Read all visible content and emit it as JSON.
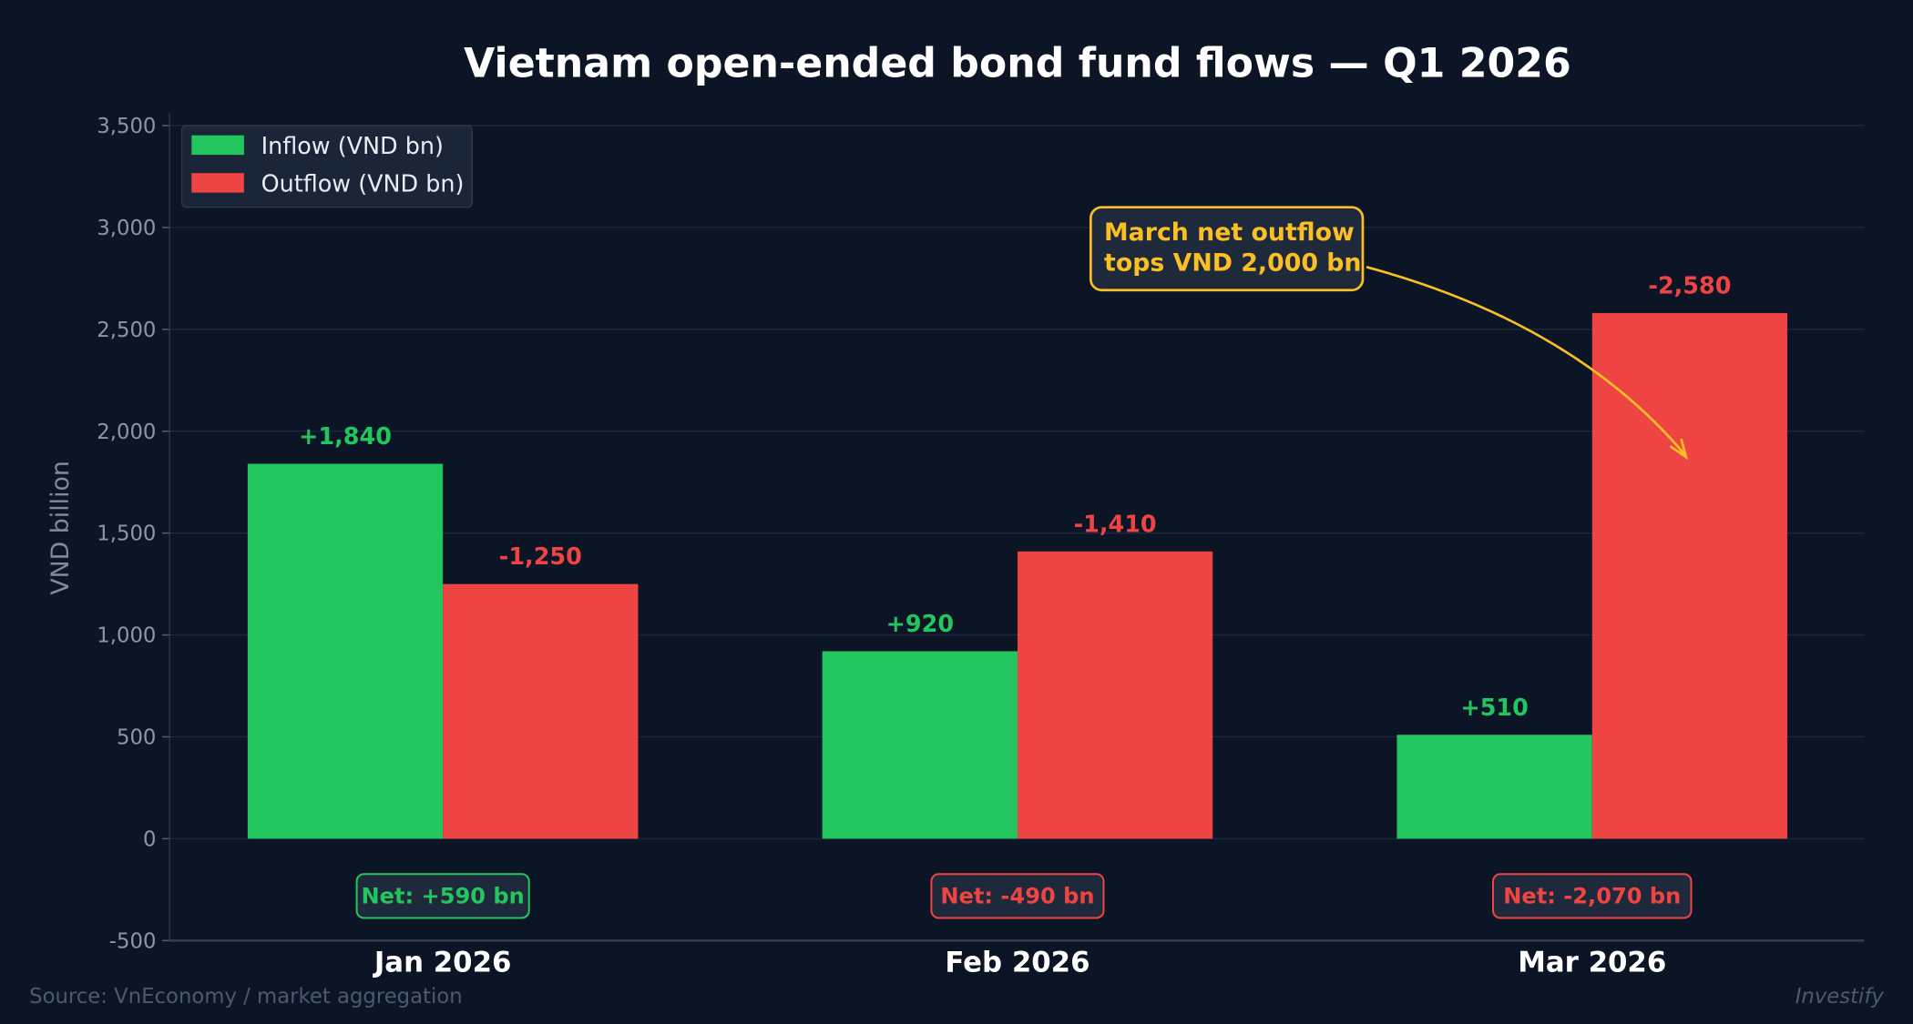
{
  "chart_data": {
    "type": "bar",
    "title": "Vietnam open-ended bond fund flows — Q1 2026",
    "ylabel": "VND billion",
    "xlabel": "",
    "ylim": [
      -500,
      3500
    ],
    "yticks": [
      -500,
      0,
      500,
      1000,
      1500,
      2000,
      2500,
      3000,
      3500
    ],
    "ytick_labels": [
      "-500",
      "0",
      "500",
      "1,000",
      "1,500",
      "2,000",
      "2,500",
      "3,000",
      "3,500"
    ],
    "grid": true,
    "legend_position": "top-left",
    "categories": [
      "Jan 2026",
      "Feb 2026",
      "Mar 2026"
    ],
    "series": [
      {
        "name": "Inflow (VND bn)",
        "values": [
          1840,
          920,
          510
        ],
        "labels": [
          "+1,840",
          "+920",
          "+510"
        ],
        "color": "#22c55e"
      },
      {
        "name": "Outflow (VND bn)",
        "values": [
          1250,
          1410,
          2580
        ],
        "labels": [
          "-1,250",
          "-1,410",
          "-2,580"
        ],
        "color": "#ef4444"
      }
    ],
    "net": [
      {
        "value": 590,
        "label": "Net: +590 bn",
        "color": "#22c55e"
      },
      {
        "value": -490,
        "label": "Net: -490 bn",
        "color": "#ef4444"
      },
      {
        "value": -2070,
        "label": "Net: -2,070 bn",
        "color": "#ef4444"
      }
    ],
    "annotation": {
      "lines": [
        "March net outflow",
        "tops VND 2,000 bn"
      ],
      "color": "#fbbf24",
      "target_category": "Mar 2026"
    },
    "source": "Source: VnEconomy / market aggregation",
    "watermark": "Investify"
  }
}
